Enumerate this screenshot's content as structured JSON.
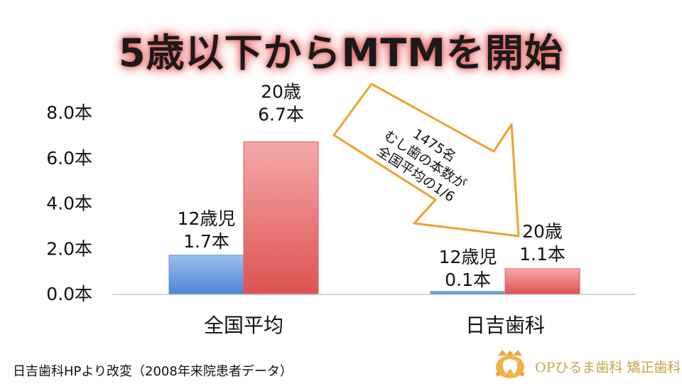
{
  "title": "5歳以下からMTMを開始",
  "footnote": "日吉歯科HPより改変（2008年来院患者データ）",
  "logo": {
    "text": "OPひるま歯科 矯正歯科",
    "icon": "tooth-logo-icon"
  },
  "colors": {
    "blue": "#5b8fd9",
    "red": "#e25d5d",
    "arrow_fill": "#ffffff",
    "arrow_stroke": "#f0a030",
    "glow": "#e76a6a"
  },
  "chart_data": {
    "type": "bar",
    "categories": [
      "全国平均",
      "日吉歯科"
    ],
    "series": [
      {
        "values": [
          1.7,
          0.1
        ],
        "labels": [
          "12歳児\n1.7本",
          "12歳児\n0.1本"
        ]
      },
      {
        "values": [
          6.7,
          1.1
        ],
        "labels": [
          "20歳\n6.7本",
          "20歳\n1.1本"
        ]
      }
    ],
    "ylim": [
      0,
      8
    ],
    "ytick_values": [
      0,
      2,
      4,
      6,
      8
    ],
    "ytick_labels": [
      "0.0本",
      "2.0本",
      "4.0本",
      "6.0本",
      "8.0本"
    ],
    "grid": false,
    "annotation": {
      "lines": [
        "1475名",
        "むし歯の本数が",
        "全国平均の1/6"
      ]
    }
  }
}
